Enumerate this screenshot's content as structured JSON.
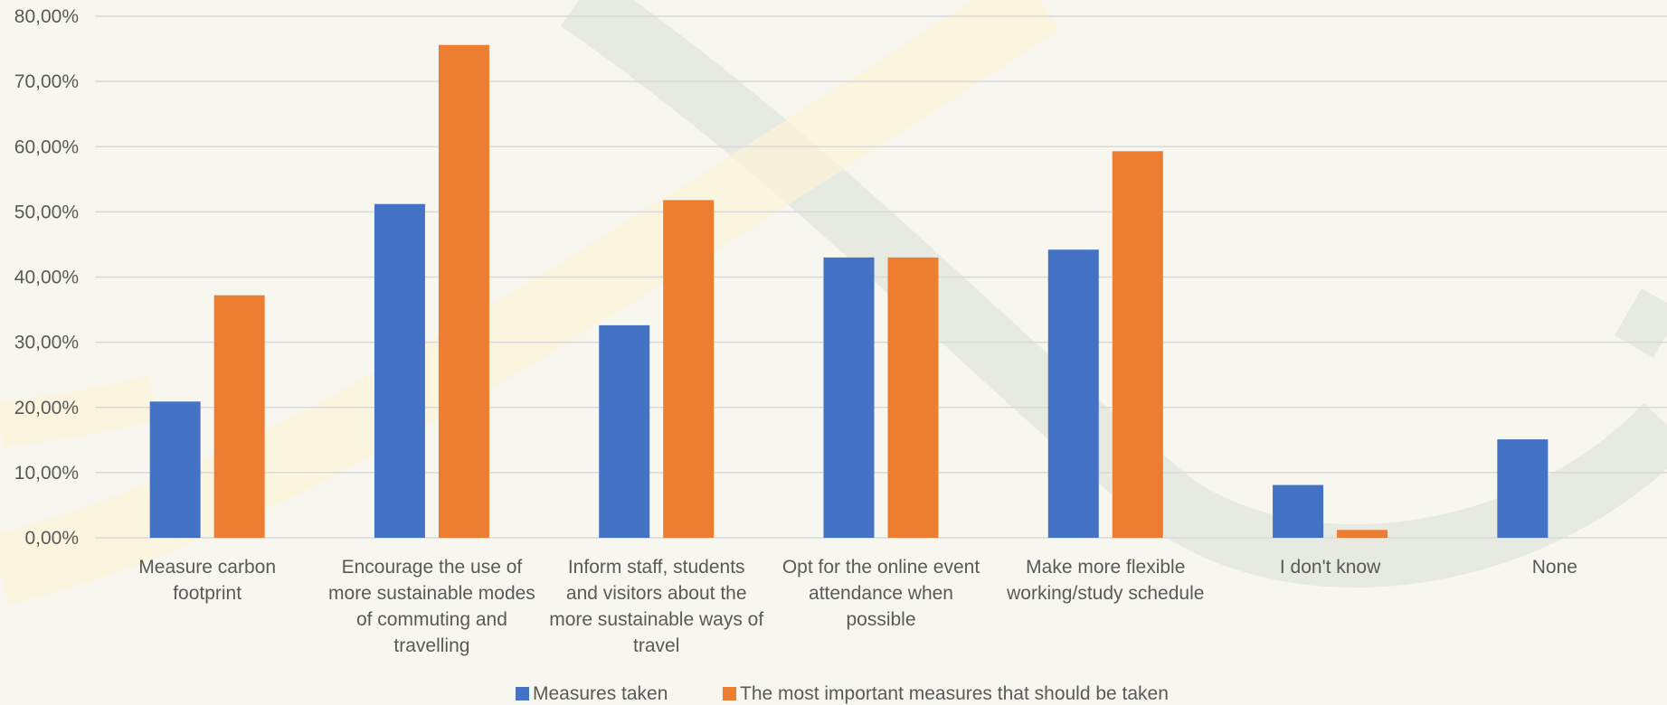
{
  "chart_data": {
    "type": "bar",
    "title": "",
    "xlabel": "",
    "ylabel": "",
    "ylim": [
      0,
      80
    ],
    "y_tick_step": 10,
    "y_tick_labels": [
      "0,00%",
      "10,00%",
      "20,00%",
      "30,00%",
      "40,00%",
      "50,00%",
      "60,00%",
      "70,00%",
      "80,00%"
    ],
    "grid": true,
    "legend_position": "bottom",
    "categories": [
      "Measure carbon footprint",
      "Encourage the use of more sustainable modes of commuting and travelling",
      "Inform staff, students and visitors about the more sustainable ways of travel",
      "Opt for the online event attendance when possible",
      "Make more flexible working/study schedule",
      "I don't know",
      "None"
    ],
    "category_label_lines": [
      [
        "Measure carbon",
        "footprint"
      ],
      [
        "Encourage the use of",
        "more sustainable modes",
        "of commuting and",
        "travelling"
      ],
      [
        "Inform staff, students",
        "and visitors about the",
        "more sustainable ways of",
        "travel"
      ],
      [
        "Opt for the online event",
        "attendance when",
        "possible"
      ],
      [
        "Make more flexible",
        "working/study schedule"
      ],
      [
        "I don't know"
      ],
      [
        "None"
      ]
    ],
    "series": [
      {
        "name": "Measures taken",
        "color": "#4472c4",
        "values": [
          20.9,
          51.2,
          32.6,
          43.0,
          44.2,
          8.1,
          15.1
        ]
      },
      {
        "name": "The most important measures that should be taken",
        "color": "#ed7d31",
        "values": [
          37.2,
          75.6,
          51.8,
          43.0,
          59.3,
          1.2,
          0
        ]
      }
    ],
    "colors": {
      "background": "#f7f7f0",
      "grid": "#d9d9d9",
      "text": "#595959"
    }
  }
}
